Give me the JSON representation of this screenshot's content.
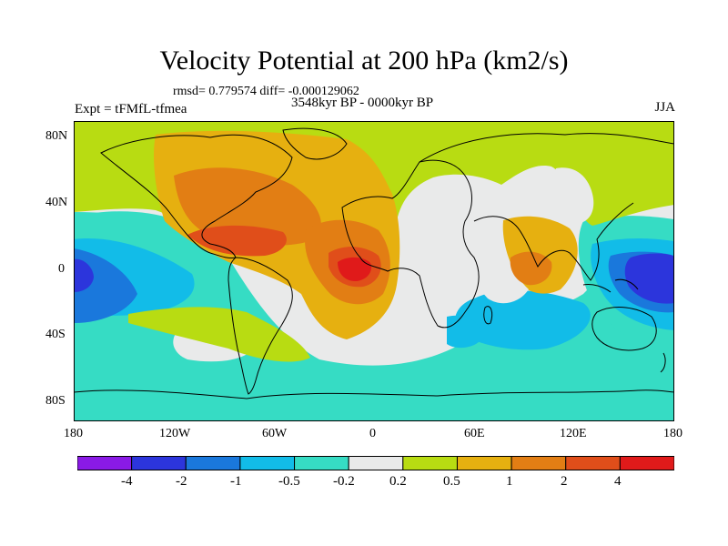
{
  "title": "Velocity Potential at 200 hPa (km2/s)",
  "stats_line": "rmsd= 0.779574 diff= -0.000129062",
  "left_label": "Expt = tFMfL-tfmea",
  "center_label": "3548kyr BP - 0000kyr BP",
  "right_label": "JJA",
  "lat_ticks": [
    "80N",
    "40N",
    "0",
    "40S",
    "80S"
  ],
  "lon_ticks": [
    "180",
    "120W",
    "60W",
    "0",
    "60E",
    "120E",
    "180"
  ],
  "colorbar": {
    "labels": [
      "-4",
      "-2",
      "-1",
      "-0.5",
      "-0.2",
      "0.2",
      "0.5",
      "1",
      "2",
      "4"
    ],
    "colors": [
      "#8a1ae6",
      "#2c35dc",
      "#1a78dc",
      "#12bce8",
      "#36dcc4",
      "#e9eaea",
      "#b8dc12",
      "#e6b010",
      "#e27e14",
      "#e04e1a",
      "#e01a1a"
    ]
  }
}
